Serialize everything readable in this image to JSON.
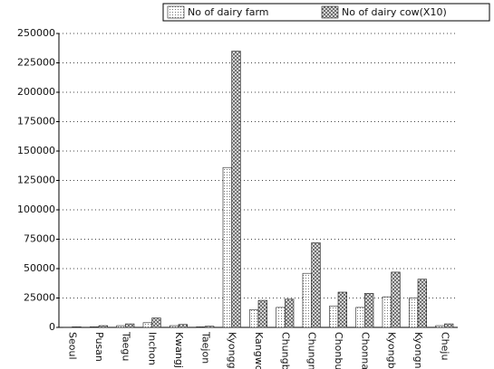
{
  "chart_data": {
    "type": "bar",
    "categories": [
      "Seoul",
      "Pusan",
      "Taegu",
      "Inchon",
      "Kwangj",
      "Taejon",
      "Kyongg",
      "Kangwo",
      "Chungb",
      "Chungn",
      "Chonbu",
      "Chonna",
      "Kyongb",
      "Kyongn",
      "Cheju"
    ],
    "series": [
      {
        "name": "No of dairy farm",
        "color": "#ffffff",
        "values": [
          200,
          500,
          1500,
          4000,
          1500,
          500,
          136000,
          15000,
          17000,
          46000,
          18000,
          17000,
          26000,
          25000,
          1500
        ]
      },
      {
        "name": "No of dairy cow(X10)",
        "color": "#555555",
        "values": [
          500,
          1500,
          3000,
          8000,
          2500,
          1000,
          235000,
          23000,
          24000,
          72000,
          30000,
          29000,
          47000,
          41000,
          3000
        ]
      }
    ],
    "ylim": [
      0,
      250000
    ],
    "yticks": [
      0,
      25000,
      50000,
      75000,
      100000,
      125000,
      150000,
      175000,
      200000,
      225000,
      250000
    ],
    "grid": true,
    "legend": "top-right"
  }
}
